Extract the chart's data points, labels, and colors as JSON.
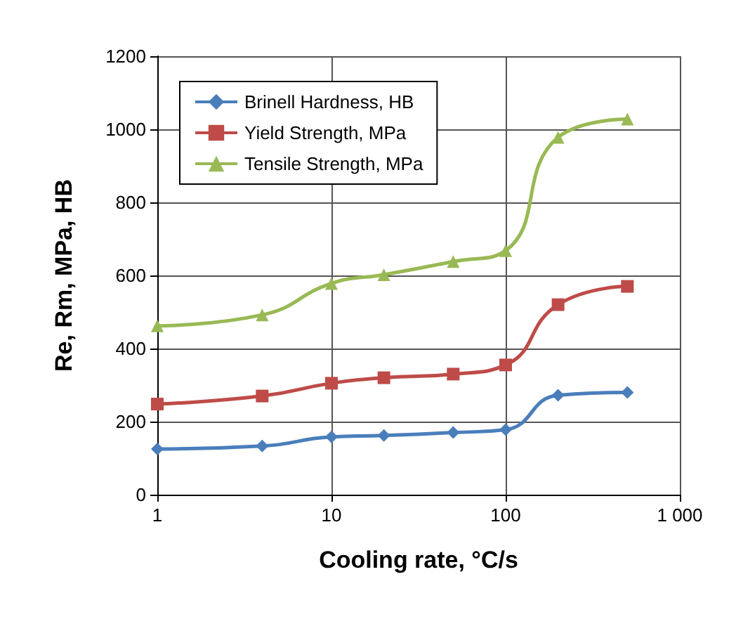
{
  "chart_data": {
    "type": "line",
    "xlabel": "Cooling rate, °C/s",
    "ylabel": "Re, Rm, MPa, HB",
    "x": [
      1,
      4,
      10,
      20,
      50,
      100,
      200,
      500
    ],
    "series": [
      {
        "name": "Brinell Hardness, HB",
        "color": "#4a7ebb",
        "marker": "diamond",
        "values": [
          125,
          133,
          158,
          162,
          170,
          178,
          272,
          280
        ]
      },
      {
        "name": "Yield Strength, MPa",
        "color": "#be4b48",
        "marker": "square",
        "values": [
          248,
          270,
          305,
          320,
          330,
          355,
          520,
          570
        ]
      },
      {
        "name": "Tensile Strength, MPa",
        "color": "#98b954",
        "marker": "triangle",
        "values": [
          462,
          492,
          578,
          602,
          638,
          668,
          978,
          1028
        ]
      }
    ],
    "xlim": [
      1,
      1000
    ],
    "xticks": [
      1,
      10,
      100,
      {
        "value": 1000,
        "label": "1 000"
      }
    ],
    "ylim": [
      0,
      1200
    ],
    "yticks": [
      0,
      200,
      400,
      600,
      800,
      1000,
      1200
    ],
    "log": "x",
    "grid": true,
    "legend": "top left"
  }
}
